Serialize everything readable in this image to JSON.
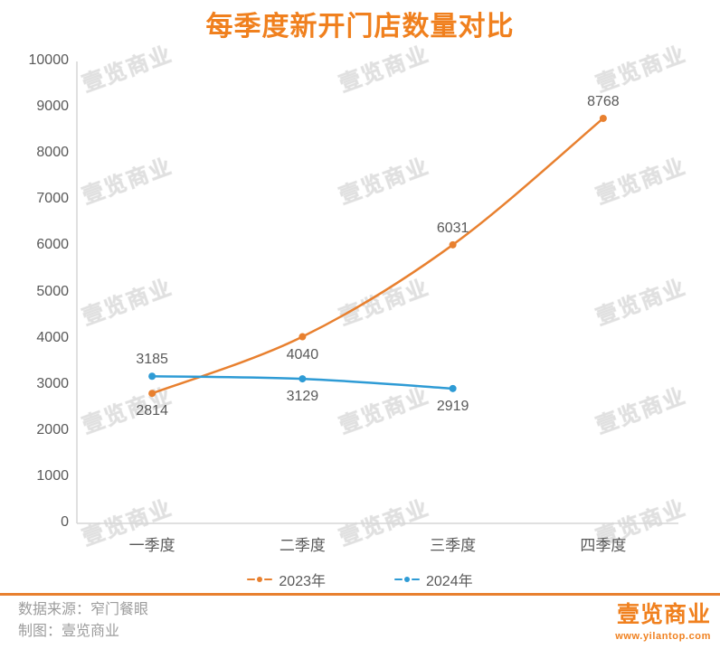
{
  "title": "每季度新开门店数量对比",
  "watermark": {
    "text": "壹览商业"
  },
  "chart_data": {
    "type": "line",
    "title": "每季度新开门店数量对比",
    "categories": [
      "一季度",
      "二季度",
      "三季度",
      "四季度"
    ],
    "series": [
      {
        "name": "2023年",
        "color": "#E8802F",
        "values": [
          2814,
          4040,
          6031,
          8768
        ],
        "label_pos": [
          "below",
          "below",
          "above",
          "above"
        ]
      },
      {
        "name": "2024年",
        "color": "#2E9BD5",
        "values": [
          3185,
          3129,
          2919
        ],
        "label_pos": [
          "above",
          "below",
          "below"
        ]
      }
    ],
    "xlabel": "",
    "ylabel": "",
    "ylim": [
      0,
      10000
    ],
    "yticks": [
      0,
      1000,
      2000,
      3000,
      4000,
      5000,
      6000,
      7000,
      8000,
      9000,
      10000
    ],
    "grid": false,
    "smooth": true,
    "legend_position": "bottom"
  },
  "footer": {
    "source_line": "数据来源：窄门餐眼",
    "credit_line": "制图：壹览商业",
    "logo_text": "壹览商业",
    "logo_url_text": "www.yilantop.com"
  },
  "colors": {
    "title_orange": "#F0801E",
    "series_2023": "#E8802F",
    "series_2024": "#2E9BD5",
    "axis_line": "#D6D6D6",
    "tick_text": "#595959",
    "footer_text": "#9C9C9C",
    "divider_orange": "#E8802F"
  }
}
